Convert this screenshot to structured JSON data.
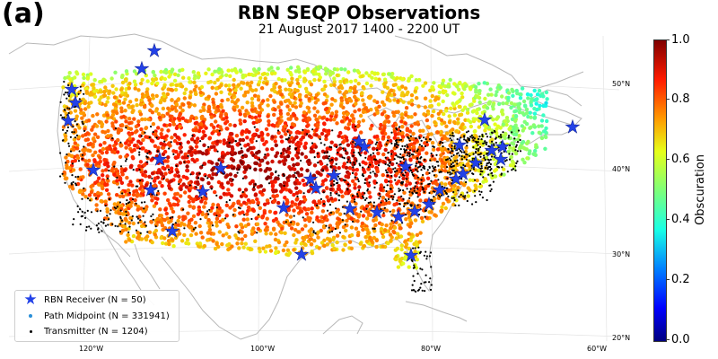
{
  "panel_label": "(a)",
  "title": "RBN SEQP Observations",
  "subtitle": "21 August 2017 1400 - 2200 UT",
  "legend": {
    "receiver": "RBN Receiver (N = 50)",
    "midpoint": "Path Midpoint (N = 331941)",
    "transmitter": "Transmitter (N = 1204)"
  },
  "colorbar": {
    "label": "Obscuration",
    "ticks": [
      "0.0",
      "0.2",
      "0.4",
      "0.6",
      "0.8",
      "1.0"
    ],
    "colors": [
      "#00007f",
      "#0000ff",
      "#0080ff",
      "#19ffe6",
      "#7dff7a",
      "#e6ff19",
      "#ff9a00",
      "#ff1a00",
      "#7f0000"
    ]
  },
  "axes": {
    "lon_labels": [
      "120°W",
      "100°W",
      "80°W",
      "60°W"
    ],
    "lat_labels": [
      "50°N",
      "40°N",
      "30°N",
      "20°N"
    ]
  },
  "colors": {
    "receiver": "#2342e8",
    "midpoint": "#2a8fd8",
    "transmitter": "#000000",
    "coastline": "#b8b8b8"
  }
}
